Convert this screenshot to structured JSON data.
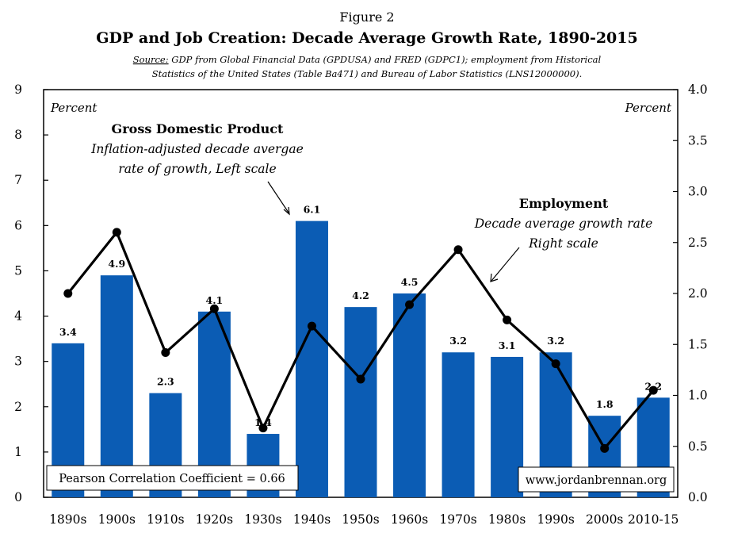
{
  "header": {
    "figure_label": "Figure 2",
    "title": "GDP and Job Creation: Decade Average Growth Rate, 1890-2015",
    "source_label": "Source:",
    "source_line1": " GDP from Global Financial Data (GPDUSA) and FRED (GDPC1); employment from Historical",
    "source_line2": "Statistics of the United States (Table Ba471) and Bureau of Labor Statistics (LNS12000000)."
  },
  "chart_data": {
    "type": "bar",
    "categories": [
      "1890s",
      "1900s",
      "1910s",
      "1920s",
      "1930s",
      "1940s",
      "1950s",
      "1960s",
      "1970s",
      "1980s",
      "1990s",
      "2000s",
      "2010-15"
    ],
    "series": [
      {
        "name": "Gross Domestic Product",
        "type": "bar",
        "axis": "left",
        "values": [
          3.4,
          4.9,
          2.3,
          4.1,
          1.4,
          6.1,
          4.2,
          4.5,
          3.2,
          3.1,
          3.2,
          1.8,
          2.2
        ],
        "data_labels": [
          "3.4",
          "4.9",
          "2.3",
          "4.1",
          "1.4",
          "6.1",
          "4.2",
          "4.5",
          "3.2",
          "3.1",
          "3.2",
          "1.8",
          "2.2"
        ],
        "color": "#0b5cb4"
      },
      {
        "name": "Employment",
        "type": "line",
        "axis": "right",
        "values": [
          2.0,
          2.6,
          1.42,
          1.85,
          0.68,
          1.68,
          1.16,
          1.89,
          2.43,
          1.74,
          1.31,
          0.48,
          1.05
        ],
        "color": "#000000"
      }
    ],
    "left_axis": {
      "ylim": [
        0,
        9
      ],
      "ticks": [
        "0",
        "1",
        "2",
        "3",
        "4",
        "5",
        "6",
        "7",
        "8",
        "9"
      ],
      "unit_label": "Percent"
    },
    "right_axis": {
      "ylim": [
        0,
        4
      ],
      "ticks": [
        "0.0",
        "0.5",
        "1.0",
        "1.5",
        "2.0",
        "2.5",
        "3.0",
        "3.5",
        "4.0"
      ],
      "unit_label": "Percent"
    },
    "grid": false,
    "annotations": {
      "gdp_title": "Gross Domestic Product",
      "gdp_line1": "Inflation-adjusted decade avergae",
      "gdp_line2": "rate of growth, Left scale",
      "emp_title": "Employment",
      "emp_line1": "Decade average growth rate",
      "emp_line2": "Right scale"
    },
    "correlation_box": "Pearson Correlation Coefficient = 0.66",
    "website_box": "www.jordanbrennan.org"
  }
}
